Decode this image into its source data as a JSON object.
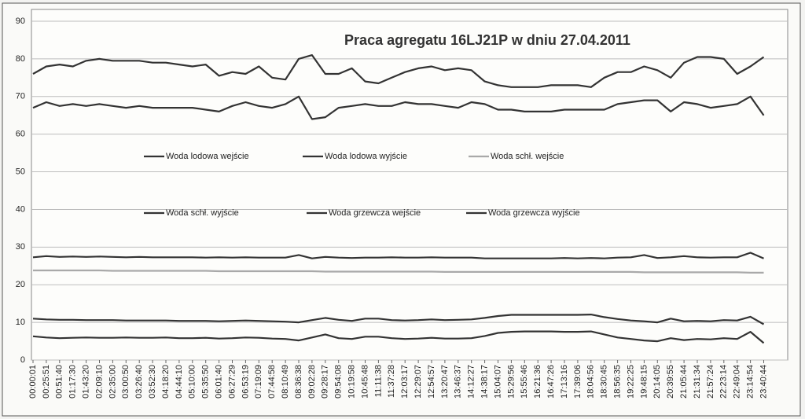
{
  "chart_data": {
    "type": "line",
    "title": "Praca agregatu 16LJ21P w dniu 27.04.2011",
    "categories": [
      "00:00:01",
      "00:25:51",
      "00:51:40",
      "01:17:30",
      "01:43:20",
      "02:09:10",
      "02:35:00",
      "03:00:50",
      "03:26:40",
      "03:52:30",
      "04:18:20",
      "04:44:10",
      "05:10:00",
      "05:35:50",
      "06:01:40",
      "06:27:29",
      "06:53:19",
      "07:19:09",
      "07:44:58",
      "08:10:49",
      "08:36:38",
      "09:02:28",
      "09:28:17",
      "09:54:08",
      "10:19:58",
      "10:45:48",
      "11:11:38",
      "11:37:28",
      "12:03:17",
      "12:29:07",
      "12:54:57",
      "13:20:47",
      "13:46:37",
      "14:12:27",
      "14:38:17",
      "15:04:07",
      "15:29:56",
      "15:55:46",
      "16:21:36",
      "16:47:26",
      "17:13:16",
      "17:39:06",
      "18:04:56",
      "18:30:45",
      "18:56:35",
      "19:22:25",
      "19:48:15",
      "20:14:05",
      "20:39:55",
      "21:05:44",
      "21:31:34",
      "21:57:24",
      "22:23:14",
      "22:49:04",
      "23:14:54",
      "23:40:44"
    ],
    "series": [
      {
        "name": "Woda lodowa wejście",
        "color": "#333333",
        "values": [
          11,
          10.8,
          10.7,
          10.7,
          10.6,
          10.6,
          10.6,
          10.5,
          10.5,
          10.5,
          10.5,
          10.4,
          10.4,
          10.4,
          10.3,
          10.4,
          10.5,
          10.4,
          10.3,
          10.2,
          10,
          10.6,
          11.2,
          10.7,
          10.4,
          11,
          11,
          10.6,
          10.5,
          10.6,
          10.8,
          10.6,
          10.7,
          10.8,
          11.2,
          11.7,
          12,
          12,
          12,
          12,
          12,
          12,
          12.1,
          11.4,
          10.9,
          10.5,
          10.3,
          10,
          11,
          10.3,
          10.4,
          10.3,
          10.6,
          10.5,
          11.5,
          9.5
        ]
      },
      {
        "name": "Woda lodowa wyjście",
        "color": "#333333",
        "values": [
          6.3,
          6,
          5.8,
          5.9,
          6,
          5.9,
          5.9,
          6,
          5.9,
          5.9,
          6,
          5.8,
          5.8,
          5.9,
          5.7,
          5.8,
          6,
          5.9,
          5.7,
          5.6,
          5.2,
          6,
          6.8,
          5.8,
          5.6,
          6.2,
          6.2,
          5.8,
          5.6,
          5.7,
          5.9,
          5.7,
          5.7,
          5.8,
          6.4,
          7.2,
          7.5,
          7.6,
          7.6,
          7.6,
          7.5,
          7.5,
          7.6,
          6.8,
          6,
          5.6,
          5.2,
          5,
          5.8,
          5.3,
          5.6,
          5.5,
          5.8,
          5.6,
          7.5,
          4.5
        ]
      },
      {
        "name": "Woda schł. wejście",
        "color": "#a9a9a9",
        "values": [
          23.8,
          23.8,
          23.8,
          23.8,
          23.8,
          23.8,
          23.7,
          23.7,
          23.7,
          23.7,
          23.7,
          23.7,
          23.7,
          23.7,
          23.6,
          23.6,
          23.6,
          23.6,
          23.6,
          23.6,
          23.6,
          23.6,
          23.5,
          23.5,
          23.5,
          23.5,
          23.5,
          23.5,
          23.5,
          23.5,
          23.5,
          23.4,
          23.4,
          23.4,
          23.4,
          23.4,
          23.4,
          23.4,
          23.4,
          23.4,
          23.4,
          23.4,
          23.4,
          23.4,
          23.4,
          23.4,
          23.3,
          23.3,
          23.3,
          23.3,
          23.3,
          23.3,
          23.3,
          23.3,
          23.2,
          23.2
        ]
      },
      {
        "name": "Woda schł. wyjście",
        "color": "#333333",
        "values": [
          27.3,
          27.6,
          27.4,
          27.5,
          27.4,
          27.5,
          27.4,
          27.3,
          27.4,
          27.3,
          27.3,
          27.3,
          27.3,
          27.2,
          27.3,
          27.2,
          27.3,
          27.2,
          27.2,
          27.2,
          27.9,
          27,
          27.4,
          27.2,
          27.1,
          27.2,
          27.2,
          27.3,
          27.2,
          27.2,
          27.3,
          27.2,
          27.2,
          27.2,
          27,
          27,
          27,
          27,
          27,
          27,
          27.1,
          27,
          27.1,
          27,
          27.2,
          27.3,
          27.9,
          27.1,
          27.3,
          27.6,
          27.3,
          27.2,
          27.3,
          27.3,
          28.5,
          27
        ]
      },
      {
        "name": "Woda grzewcza wejście",
        "color": "#333333",
        "values": [
          76,
          78,
          78.5,
          78,
          79.5,
          80,
          79.5,
          79.5,
          79.5,
          79,
          79,
          78.5,
          78,
          78.5,
          75.5,
          76.5,
          76,
          78,
          75,
          74.5,
          80,
          81,
          76,
          76,
          77.5,
          74,
          73.5,
          75,
          76.5,
          77.5,
          78,
          77,
          77.5,
          77,
          74,
          73,
          72.5,
          72.5,
          72.5,
          73,
          73,
          73,
          72.5,
          75,
          76.5,
          76.5,
          78,
          77,
          75,
          79,
          80.5,
          80.5,
          80,
          76,
          78,
          80.5
        ]
      },
      {
        "name": "Woda grzewcza wyjście",
        "color": "#333333",
        "values": [
          67,
          68.5,
          67.5,
          68,
          67.5,
          68,
          67.5,
          67,
          67.5,
          67,
          67,
          67,
          67,
          66.5,
          66,
          67.5,
          68.5,
          67.5,
          67,
          68,
          70,
          64,
          64.5,
          67,
          67.5,
          68,
          67.5,
          67.5,
          68.5,
          68,
          68,
          67.5,
          67,
          68.5,
          68,
          66.5,
          66.5,
          66,
          66,
          66,
          66.5,
          66.5,
          66.5,
          66.5,
          68,
          68.5,
          69,
          69,
          66,
          68.5,
          68,
          67,
          67.5,
          68,
          70,
          65
        ]
      }
    ],
    "ylim": [
      0,
      90
    ],
    "yticks": [
      0,
      10,
      20,
      30,
      40,
      50,
      60,
      70,
      80,
      90
    ],
    "grid": true
  }
}
